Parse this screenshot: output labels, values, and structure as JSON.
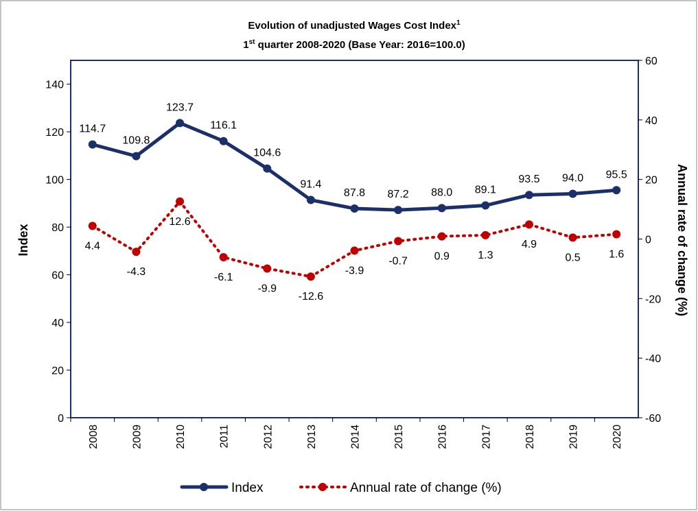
{
  "chart_data": {
    "type": "line",
    "title_parts": [
      "Evolution of unadjusted Wages Cost Index",
      "1"
    ],
    "subtitle_parts": [
      "1",
      "st",
      " quarter 2008-2020 (Base Year: 2016=100.0)"
    ],
    "ylabel": "Index",
    "y2label": "Annual rate of change (%)",
    "categories": [
      "2008",
      "2009",
      "2010",
      "2011",
      "2012",
      "2013",
      "2014",
      "2015",
      "2016",
      "2017",
      "2018",
      "2019",
      "2020"
    ],
    "series": [
      {
        "name": "Index",
        "color": "#1b2f6b",
        "values": [
          114.7,
          109.8,
          123.7,
          116.1,
          104.6,
          91.4,
          87.8,
          87.2,
          88.0,
          89.1,
          93.5,
          94.0,
          95.5
        ],
        "value_labels": [
          "114.7",
          "109.8",
          "123.7",
          "116.1",
          "104.6",
          "91.4",
          "87.8",
          "87.2",
          "88.0",
          "89.1",
          "93.5",
          "94.0",
          "95.5"
        ]
      },
      {
        "name": "Annual rate of change (%)",
        "color": "#c00000",
        "axis": "y2",
        "values": [
          4.4,
          -4.3,
          12.6,
          -6.1,
          -9.9,
          -12.6,
          -3.9,
          -0.7,
          0.9,
          1.3,
          4.9,
          0.5,
          1.6
        ]
      }
    ],
    "ylim": [
      0,
      150
    ],
    "yticks": [
      0,
      20,
      40,
      60,
      80,
      100,
      120,
      140
    ],
    "y2lim": [
      -60,
      60
    ],
    "y2ticks": [
      -60,
      -40,
      -20,
      0,
      20,
      40,
      60
    ],
    "legend": "bottom"
  }
}
